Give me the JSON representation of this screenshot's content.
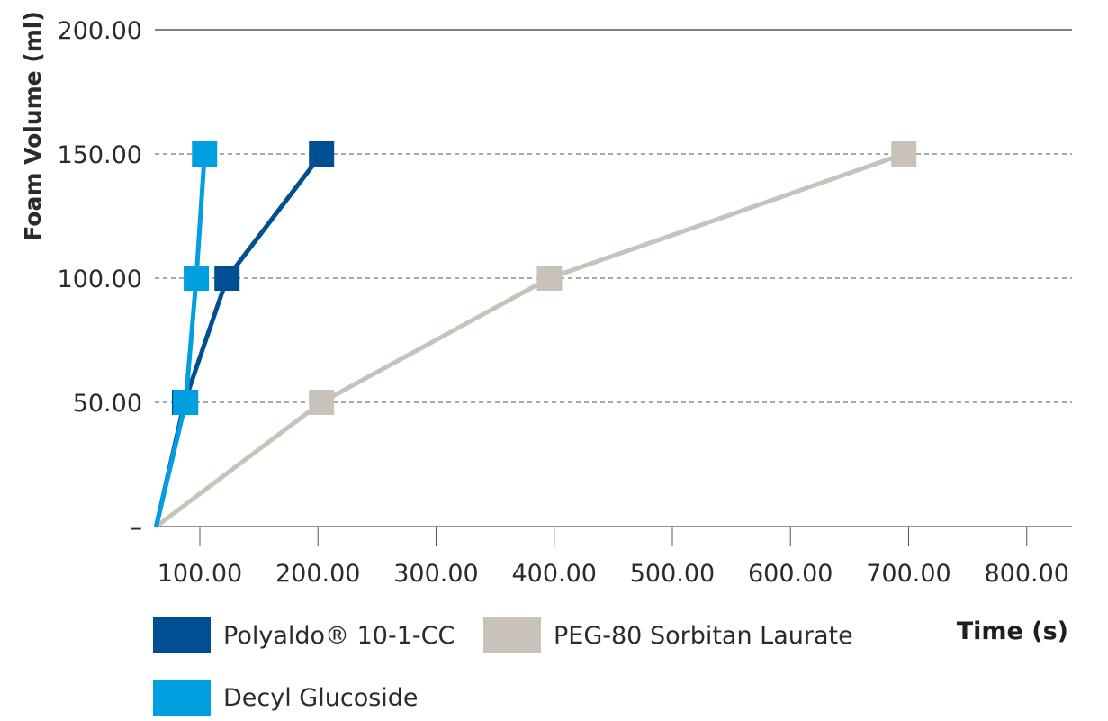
{
  "chart_data": {
    "type": "line",
    "title": "",
    "xlabel": "Time (s)",
    "ylabel": "Foam Volume (ml)",
    "xlim": [
      50,
      820
    ],
    "ylim": [
      0,
      200
    ],
    "x_ticks": [
      100,
      200,
      300,
      400,
      500,
      600,
      700,
      800
    ],
    "x_tick_labels": [
      "100.00",
      "200.00",
      "300.00",
      "400.00",
      "500.00",
      "600.00",
      "700.00",
      "800.00"
    ],
    "y_ticks": [
      0,
      50,
      100,
      150,
      200
    ],
    "y_tick_labels": [
      "–",
      "50.00",
      "100.00",
      "150.00",
      "200.00"
    ],
    "grid": "horizontal-dashed",
    "legend_placement": "bottom",
    "series": [
      {
        "name": "Polyaldo® 10-1-CC",
        "color": "#004f93",
        "points": [
          [
            63,
            0
          ],
          [
            87,
            50
          ],
          [
            123,
            100
          ],
          [
            203,
            150
          ]
        ]
      },
      {
        "name": "Decyl Glucoside",
        "color": "#009fdf",
        "points": [
          [
            63,
            0
          ],
          [
            88,
            50
          ],
          [
            97,
            100
          ],
          [
            104,
            150
          ]
        ]
      },
      {
        "name": "PEG-80 Sorbitan Laurate",
        "color": "#c9c2ba",
        "points": [
          [
            63,
            0
          ],
          [
            203,
            50
          ],
          [
            396,
            100
          ],
          [
            696,
            150
          ]
        ]
      }
    ]
  }
}
